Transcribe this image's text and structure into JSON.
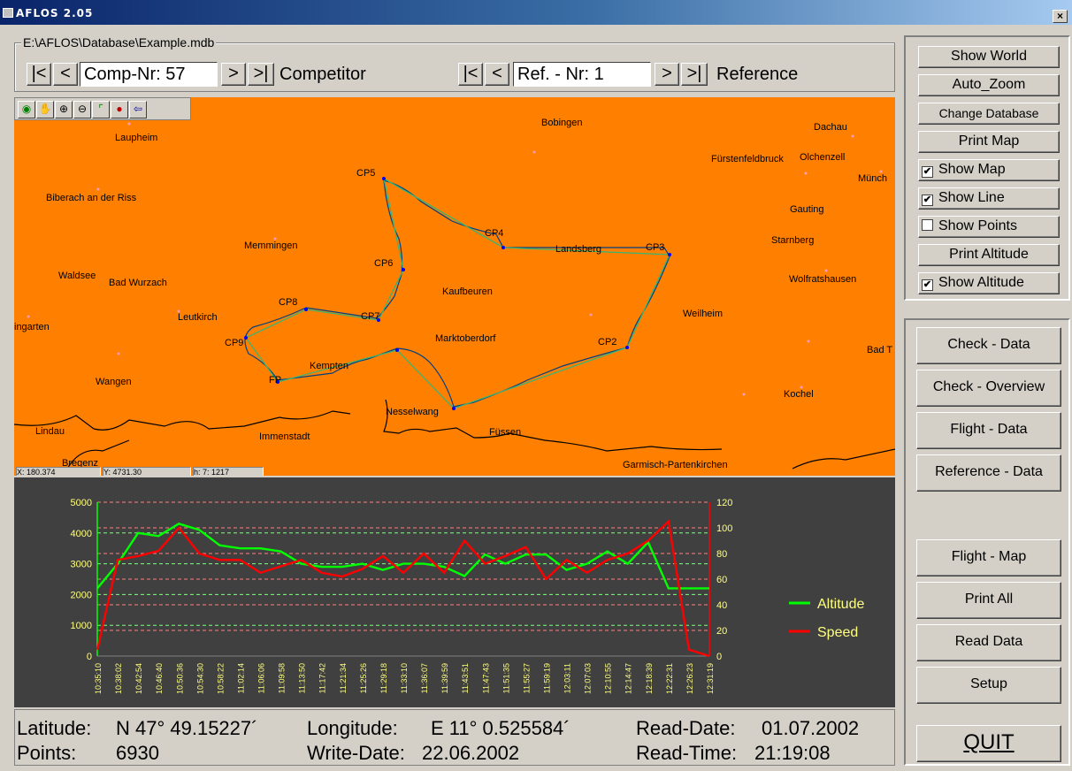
{
  "window": {
    "title": "AFLOS 2.05",
    "close": "×"
  },
  "database": {
    "path": "E:\\AFLOS\\Database\\Example.mdb"
  },
  "competitor": {
    "first": "|<",
    "prev": "<",
    "value": "Comp-Nr: 57",
    "next": ">",
    "last": ">|",
    "label": "Competitor"
  },
  "reference": {
    "first": "|<",
    "prev": "<",
    "value": "Ref. - Nr: 1",
    "next": ">",
    "last": ">|",
    "label": "Reference"
  },
  "toolbar": {
    "icons": [
      "globe-icon",
      "hand-pan-icon",
      "zoom-box-icon",
      "zoom-out-icon",
      "frame-icon",
      "info-point-icon",
      "back-arrow-icon"
    ]
  },
  "map": {
    "background": "#ff8000",
    "places": [
      {
        "name": "Laupheim"
      },
      {
        "name": "Biberach an der Riss"
      },
      {
        "name": "Waldsee"
      },
      {
        "name": "Bad Wurzach"
      },
      {
        "name": "Memmingen"
      },
      {
        "name": "Leutkirch"
      },
      {
        "name": "ingarten"
      },
      {
        "name": "Wangen"
      },
      {
        "name": "Lindau"
      },
      {
        "name": "Bregenz"
      },
      {
        "name": "Immenstadt"
      },
      {
        "name": "Kempten"
      },
      {
        "name": "Kaufbeuren"
      },
      {
        "name": "Marktoberdorf"
      },
      {
        "name": "Nesselwang"
      },
      {
        "name": "Füssen"
      },
      {
        "name": "Bobingen"
      },
      {
        "name": "Landsberg"
      },
      {
        "name": "Dachau"
      },
      {
        "name": "Fürstenfeldbruck"
      },
      {
        "name": "Olchenzell"
      },
      {
        "name": "Münch"
      },
      {
        "name": "Gauting"
      },
      {
        "name": "Starnberg"
      },
      {
        "name": "Wolfratshausen"
      },
      {
        "name": "Weilheim"
      },
      {
        "name": "Bad T"
      },
      {
        "name": "Kochel"
      },
      {
        "name": "Garmisch-Partenkirchen"
      }
    ],
    "checkpoints": [
      "CP5",
      "CP4",
      "CP3",
      "CP6",
      "CP8",
      "CP7",
      "CP9",
      "CP2",
      "FP"
    ],
    "status_fields": [
      "X: 180.374",
      "Y: 4731.30",
      "h: 7: 1217"
    ]
  },
  "chart_data": {
    "type": "line",
    "x": [
      "10:35:10",
      "10:38:02",
      "10:42:54",
      "10:46:40",
      "10:50:36",
      "10:54:30",
      "10:58:22",
      "11:02:14",
      "11:06:06",
      "11:09:58",
      "11:13:50",
      "11:17:42",
      "11:21:34",
      "11:25:26",
      "11:29:18",
      "11:33:10",
      "11:36:07",
      "11:39:59",
      "11:43:51",
      "11:47:43",
      "11:51:35",
      "11:55:27",
      "11:59:19",
      "12:03:11",
      "12:07:03",
      "12:10:55",
      "12:14:47",
      "12:18:39",
      "12:22:31",
      "12:26:23",
      "12:31:19"
    ],
    "series": [
      {
        "name": "Altitude",
        "axis": "left",
        "color": "#00ff00",
        "values": [
          2200,
          3000,
          4000,
          3900,
          4300,
          4100,
          3600,
          3500,
          3500,
          3400,
          3000,
          2900,
          2900,
          3000,
          2800,
          3000,
          3000,
          2900,
          2600,
          3300,
          3000,
          3300,
          3300,
          2800,
          3000,
          3400,
          3000,
          3700,
          2200,
          2200,
          2200
        ]
      },
      {
        "name": "Speed",
        "axis": "right",
        "color": "#ff0000",
        "values": [
          5,
          75,
          78,
          82,
          100,
          80,
          75,
          75,
          65,
          70,
          75,
          65,
          62,
          68,
          78,
          65,
          80,
          65,
          90,
          72,
          78,
          85,
          60,
          75,
          65,
          75,
          80,
          90,
          105,
          5,
          0
        ]
      }
    ],
    "y_left": {
      "min": 0,
      "max": 5000,
      "ticks": [
        "0",
        "1000",
        "2000",
        "3000",
        "4000",
        "5000"
      ]
    },
    "y_right": {
      "min": 0,
      "max": 120,
      "ticks": [
        "0",
        "20",
        "40",
        "60",
        "80",
        "100",
        "120"
      ]
    },
    "grid": true,
    "legend_position": "right"
  },
  "info": {
    "lat_label": "Latitude:",
    "lat_value": "N 47° 49.15227´",
    "lon_label": "Longitude:",
    "lon_value": "E 11° 0.525584´",
    "read_date_label": "Read-Date:",
    "read_date": "01.07.2002",
    "points_label": "Points:",
    "points": "6930",
    "write_date_label": "Write-Date:",
    "write_date": "22.06.2002",
    "read_time_label": "Read-Time:",
    "read_time": "21:19:08"
  },
  "right_panel_top": {
    "show_world": "Show World",
    "auto_zoom": "Auto_Zoom",
    "change_db": "Change Database",
    "print_map": "Print Map",
    "show_map": {
      "label": "Show Map",
      "checked": true
    },
    "show_line": {
      "label": "Show Line",
      "checked": true
    },
    "show_points": {
      "label": "Show Points",
      "checked": false
    },
    "print_altitude": "Print Altitude",
    "show_altitude": {
      "label": "Show Altitude",
      "checked": true
    }
  },
  "right_panel_bottom": {
    "check_data": "Check - Data",
    "check_overview": "Check - Overview",
    "flight_data": "Flight - Data",
    "reference_data": "Reference - Data",
    "flight_map": "Flight - Map",
    "print_all": "Print All",
    "read_data": "Read Data",
    "setup": "Setup",
    "quit": "QUIT"
  },
  "check": "✔"
}
